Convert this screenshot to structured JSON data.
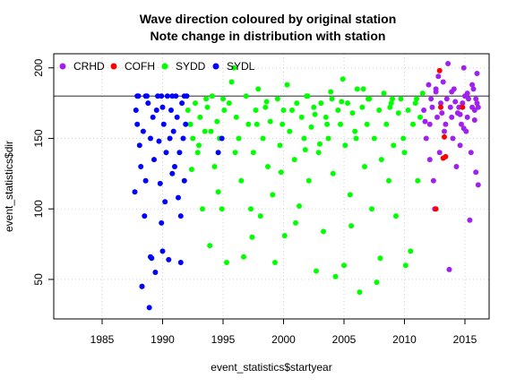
{
  "chart_data": {
    "type": "scatter",
    "title_lines": [
      "Wave direction coloured by original station",
      "Note change in distribution with station"
    ],
    "xlabel": "event_statistics$startyear",
    "ylabel": "event_statistics$dir",
    "xlim": [
      1981,
      2017
    ],
    "ylim": [
      22,
      210
    ],
    "x_ticks": [
      1985,
      1990,
      1995,
      2000,
      2005,
      2010,
      2015
    ],
    "y_ticks": [
      50,
      100,
      150,
      200
    ],
    "grid": true,
    "hline": 180,
    "legend_position": "top-left",
    "series": [
      {
        "name": "CRHD",
        "color": "#A020F0",
        "points": [
          [
            2011.6,
            170
          ],
          [
            2011.8,
            150
          ],
          [
            2012.0,
            188
          ],
          [
            2012.1,
            160
          ],
          [
            2012.2,
            178
          ],
          [
            2012.3,
            172
          ],
          [
            2012.4,
            120
          ],
          [
            2012.5,
            100
          ],
          [
            2012.6,
            185
          ],
          [
            2012.7,
            165
          ],
          [
            2012.9,
            140
          ],
          [
            2013.0,
            175
          ],
          [
            2013.1,
            168
          ],
          [
            2013.2,
            190
          ],
          [
            2013.3,
            155
          ],
          [
            2013.5,
            178
          ],
          [
            2013.6,
            203
          ],
          [
            2013.7,
            57
          ],
          [
            2013.8,
            172
          ],
          [
            2013.9,
            165
          ],
          [
            2014.0,
            150
          ],
          [
            2014.1,
            185
          ],
          [
            2014.2,
            176
          ],
          [
            2014.3,
            130
          ],
          [
            2014.4,
            168
          ],
          [
            2014.5,
            172
          ],
          [
            2014.6,
            145
          ],
          [
            2014.7,
            160
          ],
          [
            2014.8,
            175
          ],
          [
            2014.9,
            200
          ],
          [
            2015.0,
            180
          ],
          [
            2015.1,
            155
          ],
          [
            2015.2,
            165
          ],
          [
            2015.3,
            178
          ],
          [
            2015.4,
            92
          ],
          [
            2015.5,
            140
          ],
          [
            2015.6,
            172
          ],
          [
            2015.7,
            185
          ],
          [
            2015.8,
            163
          ],
          [
            2015.9,
            126
          ],
          [
            2016.0,
            196
          ],
          [
            2016.1,
            117
          ],
          [
            2016.0,
            175
          ],
          [
            2015.8,
            170
          ],
          [
            2015.2,
            182
          ],
          [
            2014.6,
            167
          ],
          [
            2013.9,
            183
          ],
          [
            2012.8,
            194
          ],
          [
            2011.7,
            162
          ],
          [
            2012.6,
            183
          ],
          [
            2013.4,
            160
          ],
          [
            2014.9,
            157
          ],
          [
            2015.6,
            188
          ],
          [
            2016.1,
            172
          ],
          [
            2015.9,
            178
          ],
          [
            2012.1,
            135
          ]
        ]
      },
      {
        "name": "COFH",
        "color": "#FF0000",
        "points": [
          [
            2012.9,
            198
          ],
          [
            2013.3,
            151
          ],
          [
            2013.4,
            137
          ],
          [
            2013.2,
            136
          ],
          [
            2014.8,
            172
          ],
          [
            2012.6,
            100
          ],
          [
            2013.0,
            172
          ]
        ]
      },
      {
        "name": "SYDD",
        "color": "#00FF00",
        "points": [
          [
            1992.1,
            170
          ],
          [
            1992.3,
            160
          ],
          [
            1992.5,
            150
          ],
          [
            1992.7,
            175
          ],
          [
            1992.9,
            140
          ],
          [
            1993.1,
            165
          ],
          [
            1993.3,
            100
          ],
          [
            1993.5,
            155
          ],
          [
            1993.7,
            172
          ],
          [
            1993.9,
            74
          ],
          [
            1994.1,
            180
          ],
          [
            1994.3,
            130
          ],
          [
            1994.5,
            162
          ],
          [
            1994.7,
            150
          ],
          [
            1994.9,
            100
          ],
          [
            1995.1,
            170
          ],
          [
            1995.3,
            62
          ],
          [
            1995.5,
            175
          ],
          [
            1995.7,
            190
          ],
          [
            1995.9,
            200
          ],
          [
            1996.1,
            165
          ],
          [
            1996.3,
            150
          ],
          [
            1996.5,
            120
          ],
          [
            1996.7,
            66
          ],
          [
            1996.9,
            180
          ],
          [
            1997.1,
            160
          ],
          [
            1997.3,
            100
          ],
          [
            1997.5,
            140
          ],
          [
            1997.7,
            170
          ],
          [
            1997.9,
            185
          ],
          [
            1998.1,
            95
          ],
          [
            1998.3,
            150
          ],
          [
            1998.5,
            172
          ],
          [
            1998.7,
            130
          ],
          [
            1998.9,
            162
          ],
          [
            1999.1,
            110
          ],
          [
            1999.3,
            62
          ],
          [
            1999.5,
            178
          ],
          [
            1999.7,
            145
          ],
          [
            1999.9,
            160
          ],
          [
            2000.1,
            81
          ],
          [
            2000.3,
            188
          ],
          [
            2000.5,
            155
          ],
          [
            2000.7,
            170
          ],
          [
            2000.9,
            135
          ],
          [
            2001.1,
            175
          ],
          [
            2001.3,
            102
          ],
          [
            2001.5,
            165
          ],
          [
            2001.7,
            150
          ],
          [
            2001.9,
            180
          ],
          [
            2002.1,
            120
          ],
          [
            2002.3,
            158
          ],
          [
            2002.5,
            172
          ],
          [
            2002.7,
            56
          ],
          [
            2002.9,
            140
          ],
          [
            2003.1,
            175
          ],
          [
            2003.3,
            84
          ],
          [
            2003.5,
            165
          ],
          [
            2003.7,
            150
          ],
          [
            2003.9,
            183
          ],
          [
            2004.1,
            125
          ],
          [
            2004.3,
            52
          ],
          [
            2004.5,
            170
          ],
          [
            2004.7,
            160
          ],
          [
            2004.9,
            192
          ],
          [
            2005.1,
            145
          ],
          [
            2005.3,
            175
          ],
          [
            2005.5,
            110
          ],
          [
            2005.7,
            168
          ],
          [
            2005.9,
            155
          ],
          [
            2006.1,
            185
          ],
          [
            2006.3,
            41
          ],
          [
            2006.5,
            172
          ],
          [
            2006.7,
            130
          ],
          [
            2006.9,
            160
          ],
          [
            2007.1,
            178
          ],
          [
            2007.3,
            100
          ],
          [
            2007.5,
            150
          ],
          [
            2007.7,
            48
          ],
          [
            2007.9,
            170
          ],
          [
            2008.1,
            135
          ],
          [
            2008.3,
            182
          ],
          [
            2008.5,
            160
          ],
          [
            2008.7,
            120
          ],
          [
            2008.9,
            175
          ],
          [
            2009.1,
            145
          ],
          [
            2009.3,
            95
          ],
          [
            2009.5,
            168
          ],
          [
            2009.7,
            178
          ],
          [
            2009.9,
            150
          ],
          [
            2010.1,
            60
          ],
          [
            2010.3,
            170
          ],
          [
            2010.5,
            70
          ],
          [
            2010.7,
            160
          ],
          [
            2010.9,
            175
          ],
          [
            2011.1,
            120
          ],
          [
            2011.3,
            165
          ],
          [
            2011.5,
            182
          ],
          [
            1992.4,
            128
          ],
          [
            1993.6,
            178
          ],
          [
            1994.6,
            112
          ],
          [
            1996.0,
            140
          ],
          [
            1997.4,
            80
          ],
          [
            1998.6,
            176
          ],
          [
            1999.8,
            126
          ],
          [
            2001.0,
            90
          ],
          [
            2002.0,
            180
          ],
          [
            2003.0,
            146
          ],
          [
            2004.0,
            178
          ],
          [
            2005.0,
            60
          ],
          [
            2006.0,
            150
          ],
          [
            2007.0,
            178
          ],
          [
            2008.0,
            65
          ],
          [
            2009.0,
            178
          ],
          [
            2010.0,
            140
          ],
          [
            2011.0,
            178
          ],
          [
            1995.0,
            178
          ],
          [
            1994.0,
            155
          ],
          [
            2000.0,
            170
          ],
          [
            2006.6,
            185
          ],
          [
            2003.6,
            160
          ],
          [
            2008.8,
            172
          ],
          [
            2004.8,
            176
          ],
          [
            1997.8,
            160
          ],
          [
            2001.8,
            142
          ],
          [
            1993.0,
            145
          ],
          [
            2005.6,
            88
          ],
          [
            2002.6,
            167
          ]
        ]
      },
      {
        "name": "SYDL",
        "color": "#0000FF",
        "points": [
          [
            1987.7,
            112
          ],
          [
            1987.8,
            170
          ],
          [
            1987.9,
            160
          ],
          [
            1988.0,
            180
          ],
          [
            1988.1,
            145
          ],
          [
            1988.2,
            130
          ],
          [
            1988.3,
            45
          ],
          [
            1988.4,
            155
          ],
          [
            1988.5,
            95
          ],
          [
            1988.6,
            120
          ],
          [
            1988.7,
            180
          ],
          [
            1988.8,
            175
          ],
          [
            1988.9,
            30
          ],
          [
            1989.0,
            150
          ],
          [
            1989.1,
            65
          ],
          [
            1989.2,
            165
          ],
          [
            1989.3,
            135
          ],
          [
            1989.4,
            55
          ],
          [
            1989.5,
            170
          ],
          [
            1989.6,
            180
          ],
          [
            1989.7,
            148
          ],
          [
            1989.8,
            118
          ],
          [
            1989.9,
            90
          ],
          [
            1990.0,
            172
          ],
          [
            1990.1,
            160
          ],
          [
            1990.2,
            105
          ],
          [
            1990.3,
            140
          ],
          [
            1990.4,
            180
          ],
          [
            1990.5,
            64
          ],
          [
            1990.6,
            150
          ],
          [
            1990.7,
            170
          ],
          [
            1990.8,
            125
          ],
          [
            1990.9,
            155
          ],
          [
            1991.0,
            130
          ],
          [
            1991.1,
            180
          ],
          [
            1991.2,
            165
          ],
          [
            1991.3,
            108
          ],
          [
            1991.4,
            140
          ],
          [
            1991.5,
            95
          ],
          [
            1991.6,
            175
          ],
          [
            1991.7,
            150
          ],
          [
            1991.8,
            120
          ],
          [
            1991.9,
            160
          ],
          [
            1992.0,
            180
          ],
          [
            1988.3,
            45
          ],
          [
            1989.0,
            66
          ],
          [
            1990.0,
            70
          ],
          [
            1991.5,
            62
          ],
          [
            1987.9,
            180
          ],
          [
            1988.6,
            180
          ],
          [
            1989.9,
            180
          ],
          [
            1990.8,
            180
          ],
          [
            1991.8,
            180
          ],
          [
            1994.6,
            140
          ],
          [
            1994.9,
            150
          ]
        ]
      }
    ]
  }
}
